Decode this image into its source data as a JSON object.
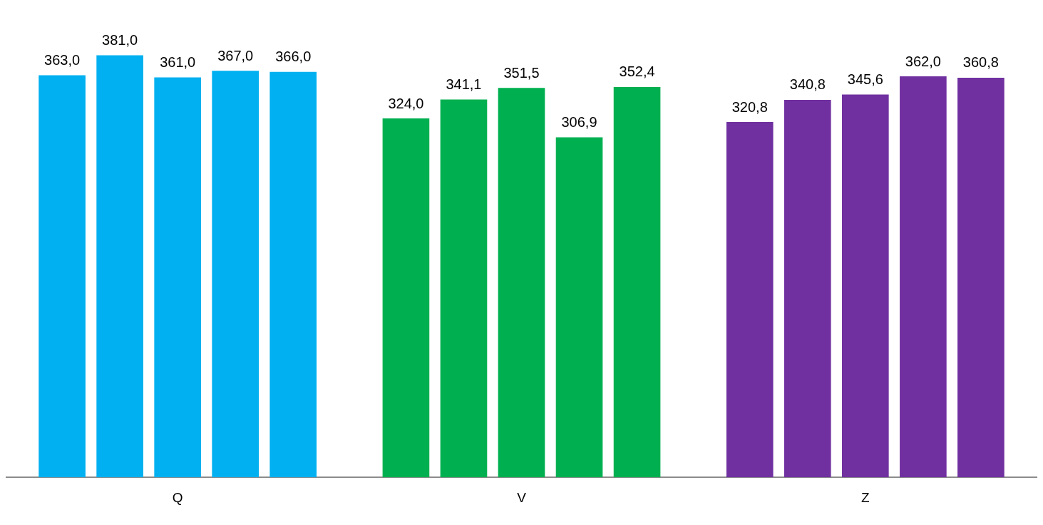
{
  "chart_data": {
    "type": "bar",
    "categories": [
      "Q",
      "V",
      "Z"
    ],
    "series": [
      {
        "colors": [
          "#00b0f0",
          "#00b050",
          "#7030a0"
        ],
        "values": [
          363.0,
          324.0,
          320.8
        ],
        "value_labels": [
          "363,0",
          "324,0",
          "320,8"
        ]
      },
      {
        "colors": [
          "#00b0f0",
          "#00b050",
          "#7030a0"
        ],
        "values": [
          381.0,
          341.1,
          340.8
        ],
        "value_labels": [
          "381,0",
          "341,1",
          "340,8"
        ]
      },
      {
        "colors": [
          "#00b0f0",
          "#00b050",
          "#7030a0"
        ],
        "values": [
          361.0,
          351.5,
          345.6
        ],
        "value_labels": [
          "361,0",
          "351,5",
          "345,6"
        ]
      },
      {
        "colors": [
          "#00b0f0",
          "#00b050",
          "#7030a0"
        ],
        "values": [
          367.0,
          306.9,
          362.0
        ],
        "value_labels": [
          "367,0",
          "306,9",
          "362,0"
        ]
      },
      {
        "colors": [
          "#00b0f0",
          "#00b050",
          "#7030a0"
        ],
        "values": [
          366.0,
          352.4,
          360.8
        ],
        "value_labels": [
          "366,0",
          "352,4",
          "360,8"
        ]
      }
    ],
    "grid": false,
    "legend": false,
    "tick_labels": "x"
  }
}
